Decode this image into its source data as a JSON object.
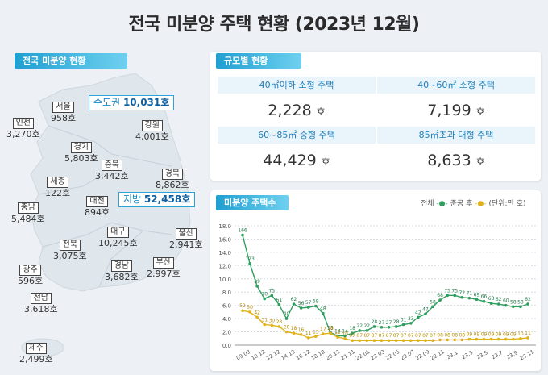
{
  "title": "전국 미분양 주택 현황 (2023년 12월)",
  "map_section": {
    "tag": "전국 미분양 현황",
    "capital": {
      "label": "수도권",
      "value": "10,031호"
    },
    "provinces": {
      "label": "지방",
      "value": "52,458호"
    },
    "regions": [
      {
        "id": "seoul",
        "name": "서울",
        "value": "958호"
      },
      {
        "id": "incheon",
        "name": "인천",
        "value": "3,270호"
      },
      {
        "id": "gyeonggi",
        "name": "경기",
        "value": "5,803호"
      },
      {
        "id": "gangwon",
        "name": "강원",
        "value": "4,001호"
      },
      {
        "id": "chungbuk",
        "name": "충북",
        "value": "3,442호"
      },
      {
        "id": "sejong",
        "name": "세종",
        "value": "122호"
      },
      {
        "id": "gyeongbuk",
        "name": "경북",
        "value": "8,862호"
      },
      {
        "id": "chungnam",
        "name": "충남",
        "value": "5,484호"
      },
      {
        "id": "daejeon",
        "name": "대전",
        "value": "894호"
      },
      {
        "id": "daegu",
        "name": "대구",
        "value": "10,245호"
      },
      {
        "id": "ulsan",
        "name": "울산",
        "value": "2,941호"
      },
      {
        "id": "jeonbuk",
        "name": "전북",
        "value": "3,075호"
      },
      {
        "id": "gwangju",
        "name": "광주",
        "value": "596호"
      },
      {
        "id": "gyeongnam",
        "name": "경남",
        "value": "3,682호"
      },
      {
        "id": "busan",
        "name": "부산",
        "value": "2,997호"
      },
      {
        "id": "jeonnam",
        "name": "전남",
        "value": "3,618호"
      },
      {
        "id": "jeju",
        "name": "제주",
        "value": "2,499호"
      }
    ]
  },
  "size_section": {
    "tag": "규모별 현황",
    "unit": "호",
    "cells": [
      {
        "label": "40㎡이하 소형 주택",
        "value": "2,228"
      },
      {
        "label": "40~60㎡ 소형 주택",
        "value": "7,199"
      },
      {
        "label": "60~85㎡ 중형 주택",
        "value": "44,429"
      },
      {
        "label": "85㎡초과 대형 주택",
        "value": "8,633"
      }
    ]
  },
  "chart_section": {
    "tag": "미분양 주택수",
    "legend_total": "전체",
    "legend_completed": "준공 후",
    "unit_note": "(단위:만 호)",
    "colors": {
      "total": "#2e9e5e",
      "completed": "#e0b21a"
    }
  },
  "chart_data": {
    "type": "line",
    "ylim": [
      0,
      18
    ],
    "yticks": [
      "0.0",
      "2.0",
      "4.0",
      "6.0",
      "8.0",
      "10.0",
      "12.0",
      "14.0",
      "16.0",
      "18.0"
    ],
    "xticks": [
      "09.03",
      "10.12",
      "12.12",
      "14.12",
      "16.12",
      "18.12",
      "20.12",
      "21.11",
      "22.01",
      "22.03",
      "22.05",
      "22.07",
      "22.09",
      "22.11",
      "23.1",
      "23.3",
      "23.5",
      "23.7",
      "23.9",
      "23.11"
    ],
    "series": [
      {
        "name": "전체",
        "values": [
          16.6,
          12.3,
          8.9,
          7.0,
          7.5,
          6.1,
          4.0,
          6.2,
          5.6,
          5.7,
          5.9,
          4.8,
          1.9,
          1.4,
          1.4,
          1.8,
          2.2,
          2.2,
          2.8,
          2.7,
          2.7,
          2.8,
          3.1,
          3.3,
          4.2,
          4.7,
          5.8,
          6.8,
          7.5,
          7.5,
          7.2,
          7.1,
          6.9,
          6.6,
          6.3,
          6.2,
          6.0,
          5.8,
          5.8,
          6.2
        ]
      },
      {
        "name": "준공 후",
        "values": [
          5.2,
          5.0,
          4.2,
          3.1,
          3.0,
          2.8,
          2.0,
          1.8,
          1.6,
          1.1,
          1.3,
          1.7,
          1.8,
          1.2,
          1.0,
          0.7,
          0.7,
          0.7,
          0.7,
          0.7,
          0.7,
          0.7,
          0.7,
          0.7,
          0.7,
          0.7,
          0.7,
          0.8,
          0.8,
          0.8,
          0.8,
          0.9,
          0.9,
          0.9,
          0.9,
          0.9,
          0.9,
          0.9,
          1.0,
          1.1
        ]
      }
    ],
    "point_labels_total": [
      "166",
      "123",
      "89",
      "70",
      "75",
      "61",
      "40",
      "62",
      "56",
      "57",
      "59",
      "48",
      "19",
      "14",
      "14",
      "18",
      "22",
      "22",
      "28",
      "27",
      "27",
      "28",
      "31",
      "33",
      "42",
      "47",
      "58",
      "68",
      "75",
      "75",
      "72",
      "71",
      "69",
      "66",
      "63",
      "62",
      "60",
      "58",
      "58",
      "62"
    ],
    "point_labels_completed": [
      "52",
      "50",
      "42",
      "31",
      "30",
      "28",
      "20",
      "18",
      "16",
      "11",
      "13",
      "17",
      "18",
      "12",
      "10",
      "07",
      "07",
      "07",
      "07",
      "07",
      "07",
      "07",
      "07",
      "07",
      "07",
      "07",
      "07",
      "08",
      "08",
      "08",
      "08",
      "09",
      "09",
      "09",
      "09",
      "09",
      "09",
      "09",
      "10",
      "11"
    ]
  }
}
